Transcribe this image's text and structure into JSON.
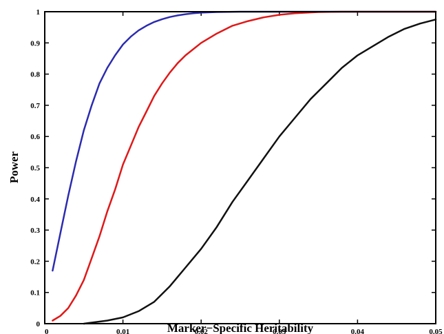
{
  "chart_data": {
    "type": "line",
    "title": "",
    "xlabel": "Marker−Specific Heritability",
    "ylabel": "Power",
    "xlim": [
      0,
      0.05
    ],
    "ylim": [
      0,
      1
    ],
    "x_ticks": [
      "0",
      "0.01",
      "0.02",
      "0.03",
      "0.04",
      "0.05"
    ],
    "y_ticks": [
      "0",
      "0.1",
      "0.2",
      "0.3",
      "0.4",
      "0.5",
      "0.6",
      "0.7",
      "0.8",
      "0.9",
      "1"
    ],
    "grid": false,
    "legend": "none",
    "series": [
      {
        "color": "#2b2bb0",
        "x": [
          0.001,
          0.002,
          0.003,
          0.004,
          0.005,
          0.006,
          0.007,
          0.008,
          0.009,
          0.01,
          0.011,
          0.012,
          0.013,
          0.014,
          0.015,
          0.016,
          0.017,
          0.018,
          0.019,
          0.02,
          0.022,
          0.025,
          0.03,
          0.035,
          0.04,
          0.045,
          0.05
        ],
        "y": [
          0.17,
          0.29,
          0.41,
          0.52,
          0.62,
          0.7,
          0.77,
          0.82,
          0.86,
          0.895,
          0.92,
          0.94,
          0.955,
          0.967,
          0.976,
          0.983,
          0.988,
          0.992,
          0.995,
          0.997,
          0.999,
          1.0,
          1.0,
          1.0,
          1.0,
          1.0,
          1.0
        ]
      },
      {
        "color": "#e01818",
        "x": [
          0.001,
          0.002,
          0.003,
          0.004,
          0.005,
          0.006,
          0.007,
          0.008,
          0.009,
          0.01,
          0.011,
          0.012,
          0.013,
          0.014,
          0.015,
          0.016,
          0.017,
          0.018,
          0.019,
          0.02,
          0.022,
          0.024,
          0.026,
          0.028,
          0.03,
          0.032,
          0.035,
          0.038,
          0.04,
          0.045,
          0.05
        ],
        "y": [
          0.01,
          0.025,
          0.05,
          0.09,
          0.14,
          0.21,
          0.28,
          0.36,
          0.43,
          0.51,
          0.57,
          0.63,
          0.68,
          0.73,
          0.77,
          0.805,
          0.835,
          0.86,
          0.88,
          0.9,
          0.93,
          0.955,
          0.97,
          0.982,
          0.99,
          0.995,
          0.999,
          1.0,
          1.0,
          1.0,
          1.0
        ]
      },
      {
        "color": "#111111",
        "x": [
          0.005,
          0.008,
          0.01,
          0.012,
          0.014,
          0.016,
          0.018,
          0.02,
          0.022,
          0.024,
          0.026,
          0.028,
          0.03,
          0.032,
          0.034,
          0.036,
          0.038,
          0.04,
          0.042,
          0.044,
          0.046,
          0.048,
          0.05
        ],
        "y": [
          0.0,
          0.01,
          0.02,
          0.04,
          0.07,
          0.12,
          0.18,
          0.24,
          0.31,
          0.39,
          0.46,
          0.53,
          0.6,
          0.66,
          0.72,
          0.77,
          0.82,
          0.86,
          0.89,
          0.92,
          0.945,
          0.962,
          0.975
        ]
      }
    ]
  }
}
